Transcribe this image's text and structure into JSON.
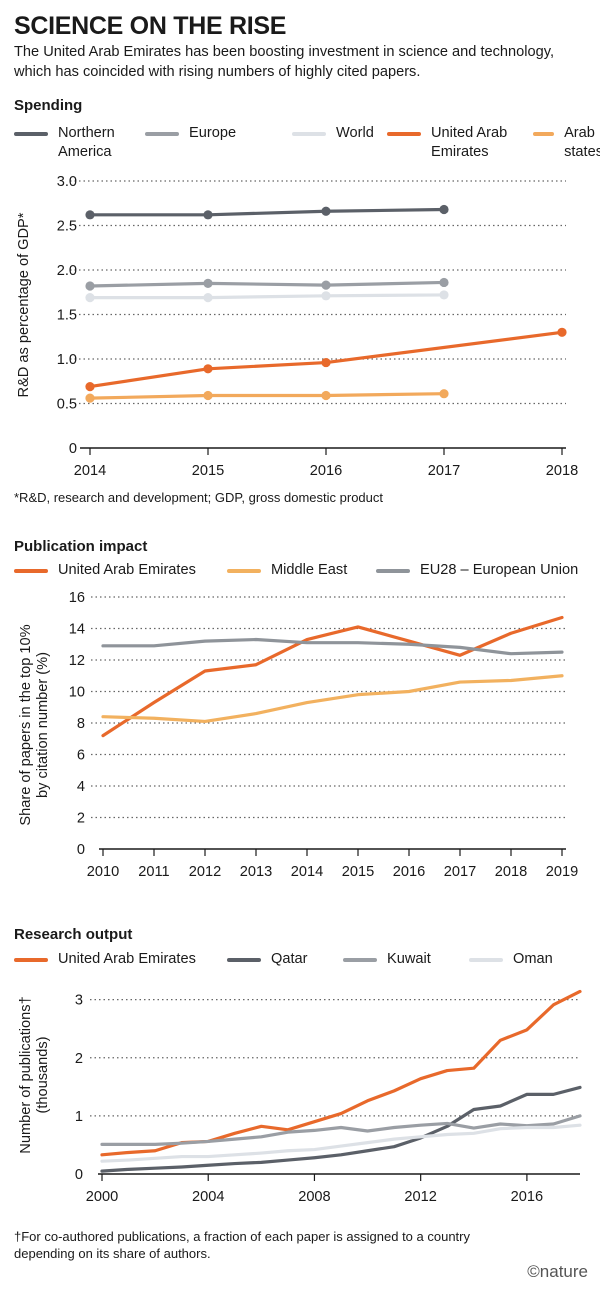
{
  "headline": "SCIENCE ON THE RISE",
  "standfirst": "The United Arab Emirates has been boosting investment in science and technology, which has coincided with rising numbers of highly cited papers.",
  "colors": {
    "uae": "#e8692b",
    "northern_america": "#5b6068",
    "europe": "#9a9ea4",
    "world": "#dde1e6",
    "arab_states": "#f2a95c",
    "middle_east": "#f2b15f",
    "eu28": "#8f949a",
    "qatar": "#5b6068",
    "kuwait": "#9a9ea4",
    "oman": "#dde1e6"
  },
  "brand": "©nature",
  "chart_data": [
    {
      "type": "line",
      "title": "Spending",
      "ylabel": "R&D as percentage of GDP*",
      "ylim": [
        0,
        3.0
      ],
      "yticks": [
        "0",
        "0.5",
        "1.0",
        "1.5",
        "2.0",
        "2.5",
        "3.0"
      ],
      "xticks": [
        "2014",
        "2015",
        "2016",
        "2017",
        "2018"
      ],
      "grid": true,
      "legend_position": "top",
      "footnote": "*R&D, research and development; GDP, gross domestic product",
      "series": [
        {
          "name": "Northern America",
          "color_key": "northern_america",
          "x": [
            2014,
            2015,
            2016,
            2017
          ],
          "y": [
            2.62,
            2.62,
            2.66,
            2.68
          ]
        },
        {
          "name": "Europe",
          "color_key": "europe",
          "x": [
            2014,
            2015,
            2016,
            2017
          ],
          "y": [
            1.82,
            1.85,
            1.83,
            1.86
          ]
        },
        {
          "name": "World",
          "color_key": "world",
          "x": [
            2014,
            2015,
            2016,
            2017
          ],
          "y": [
            1.69,
            1.69,
            1.71,
            1.72
          ]
        },
        {
          "name": "United Arab Emirates",
          "color_key": "uae",
          "x": [
            2014,
            2015,
            2016,
            2018
          ],
          "y": [
            0.69,
            0.89,
            0.96,
            1.3
          ]
        },
        {
          "name": "Arab states",
          "color_key": "arab_states",
          "x": [
            2014,
            2015,
            2016,
            2017
          ],
          "y": [
            0.56,
            0.59,
            0.59,
            0.61
          ]
        }
      ]
    },
    {
      "type": "line",
      "title": "Publication impact",
      "ylabel": "Share of papers in the top 10% by citation number (%)",
      "ylim": [
        0,
        16
      ],
      "yticks": [
        "0",
        "2",
        "4",
        "6",
        "8",
        "10",
        "12",
        "14",
        "16"
      ],
      "xticks": [
        "2010",
        "2011",
        "2012",
        "2013",
        "2014",
        "2015",
        "2016",
        "2017",
        "2018",
        "2019"
      ],
      "grid": true,
      "legend_position": "top",
      "series": [
        {
          "name": "United Arab Emirates",
          "color_key": "uae",
          "x": [
            2010,
            2011,
            2012,
            2013,
            2014,
            2015,
            2016,
            2017,
            2018,
            2019
          ],
          "y": [
            7.2,
            9.3,
            11.3,
            11.7,
            13.3,
            14.1,
            13.2,
            12.3,
            13.7,
            14.7
          ]
        },
        {
          "name": "Middle East",
          "color_key": "middle_east",
          "x": [
            2010,
            2011,
            2012,
            2013,
            2014,
            2015,
            2016,
            2017,
            2018,
            2019
          ],
          "y": [
            8.4,
            8.3,
            8.1,
            8.6,
            9.3,
            9.8,
            10.0,
            10.6,
            10.7,
            11.0
          ]
        },
        {
          "name": "EU28 – European Union",
          "color_key": "eu28",
          "x": [
            2010,
            2011,
            2012,
            2013,
            2014,
            2015,
            2016,
            2017,
            2018,
            2019
          ],
          "y": [
            12.9,
            12.9,
            13.2,
            13.3,
            13.1,
            13.1,
            13.0,
            12.8,
            12.4,
            12.5
          ]
        }
      ]
    },
    {
      "type": "line",
      "title": "Research output",
      "ylabel": "Number of publications† (thousands)",
      "ylim": [
        0,
        3.2
      ],
      "yticks": [
        "0",
        "1",
        "2",
        "3"
      ],
      "xticks": [
        "2000",
        "2004",
        "2008",
        "2012",
        "2016"
      ],
      "grid": true,
      "legend_position": "top",
      "footnote": "†For co-authored publications, a fraction of each paper is assigned to a country depending on its share of authors.",
      "series": [
        {
          "name": "United Arab Emirates",
          "color_key": "uae",
          "x": [
            2000,
            2001,
            2002,
            2003,
            2004,
            2005,
            2006,
            2007,
            2008,
            2009,
            2010,
            2011,
            2012,
            2013,
            2014,
            2015,
            2016,
            2017,
            2018
          ],
          "y": [
            0.33,
            0.37,
            0.4,
            0.54,
            0.56,
            0.7,
            0.82,
            0.76,
            0.9,
            1.04,
            1.26,
            1.43,
            1.64,
            1.78,
            1.82,
            2.3,
            2.48,
            2.91,
            3.14
          ]
        },
        {
          "name": "Qatar",
          "color_key": "qatar",
          "x": [
            2000,
            2001,
            2002,
            2003,
            2004,
            2005,
            2006,
            2007,
            2008,
            2009,
            2010,
            2011,
            2012,
            2013,
            2014,
            2015,
            2016,
            2017,
            2018
          ],
          "y": [
            0.05,
            0.08,
            0.1,
            0.12,
            0.15,
            0.18,
            0.2,
            0.24,
            0.28,
            0.33,
            0.4,
            0.47,
            0.62,
            0.82,
            1.11,
            1.17,
            1.37,
            1.37,
            1.49
          ]
        },
        {
          "name": "Kuwait",
          "color_key": "kuwait",
          "x": [
            2000,
            2001,
            2002,
            2003,
            2004,
            2005,
            2006,
            2007,
            2008,
            2009,
            2010,
            2011,
            2012,
            2013,
            2014,
            2015,
            2016,
            2017,
            2018
          ],
          "y": [
            0.51,
            0.51,
            0.51,
            0.53,
            0.56,
            0.6,
            0.64,
            0.72,
            0.75,
            0.8,
            0.74,
            0.8,
            0.84,
            0.87,
            0.79,
            0.86,
            0.83,
            0.86,
            1.0
          ]
        },
        {
          "name": "Oman",
          "color_key": "oman",
          "x": [
            2000,
            2001,
            2002,
            2003,
            2004,
            2005,
            2006,
            2007,
            2008,
            2009,
            2010,
            2011,
            2012,
            2013,
            2014,
            2015,
            2016,
            2017,
            2018
          ],
          "y": [
            0.22,
            0.24,
            0.27,
            0.3,
            0.3,
            0.33,
            0.36,
            0.4,
            0.42,
            0.48,
            0.54,
            0.6,
            0.64,
            0.68,
            0.7,
            0.78,
            0.8,
            0.8,
            0.84
          ]
        }
      ]
    }
  ]
}
